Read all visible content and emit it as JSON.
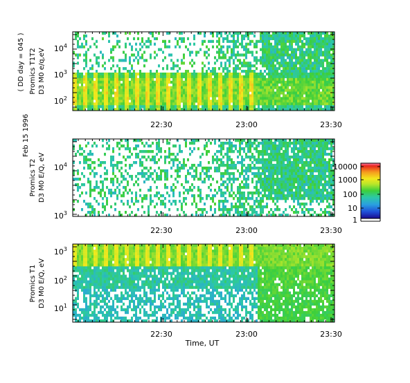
{
  "figure": {
    "side_label": "Feb 15 1996",
    "doy_label": "( DD day = 045 )",
    "xlabel": "Time, UT"
  },
  "colorbar": {
    "tick_labels": [
      "10000",
      "1000",
      "100",
      "10",
      "1"
    ],
    "stops": [
      "#1a0a8c",
      "#1f4fd8",
      "#2a9fe0",
      "#2cc8a8",
      "#3ccf3c",
      "#b8e62a",
      "#f2e81c",
      "#f59a1e",
      "#e8261e",
      "#ff7fb0"
    ]
  },
  "chart_data": [
    {
      "type": "heatmap",
      "ylabel_lines": [
        "Promics T1T2",
        "D3 M0 e/q,eV"
      ],
      "x_tick_labels": [
        "22:30",
        "23:00",
        "23:30"
      ],
      "y_tick_labels": [
        "10^4",
        "10^3",
        "10^2"
      ],
      "y_scale": "log",
      "ylim": [
        50,
        30000
      ],
      "color_scale": "log",
      "crange": [
        1,
        10000
      ]
    },
    {
      "type": "heatmap",
      "ylabel_lines": [
        "Promics T2",
        "D3 M0 E/Q, eV"
      ],
      "x_tick_labels": [
        "22:30",
        "23:00",
        "23:30"
      ],
      "y_tick_labels": [
        "10^4",
        "10^3"
      ],
      "y_scale": "log",
      "ylim": [
        1000,
        30000
      ],
      "color_scale": "log",
      "crange": [
        1,
        10000
      ]
    },
    {
      "type": "heatmap",
      "ylabel_lines": [
        "Promics T1",
        "D3 M0 E/Q, eV"
      ],
      "x_tick_labels": [
        "22:30",
        "23:00",
        "23:30"
      ],
      "y_tick_labels": [
        "10^3",
        "10^2",
        "10^1"
      ],
      "y_scale": "log",
      "ylim": [
        4,
        1500
      ],
      "color_scale": "log",
      "crange": [
        1,
        10000
      ]
    }
  ]
}
